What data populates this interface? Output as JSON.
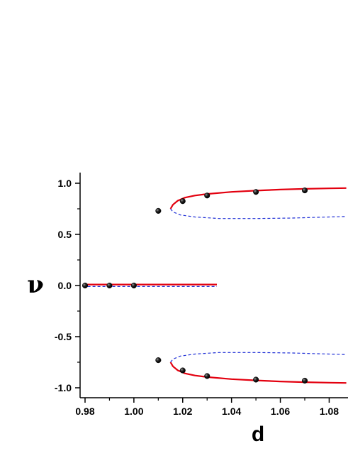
{
  "chart_data": {
    "type": "scatter",
    "title": "",
    "xlabel": "d",
    "ylabel": "ν",
    "xlim": [
      0.979,
      1.087
    ],
    "ylim": [
      -1.1,
      1.1
    ],
    "grid": false,
    "legend": "none",
    "x_ticks": [
      "0.98",
      "1.00",
      "1.02",
      "1.04",
      "1.06",
      "1.08"
    ],
    "y_ticks": [
      "1.0",
      "0.5",
      "0.0",
      "-0.5",
      "-1.0"
    ],
    "series": [
      {
        "style": "solid",
        "color": "#e3000f",
        "points": [
          [
            0.979,
            0.01
          ],
          [
            1.034,
            0.01
          ]
        ]
      },
      {
        "style": "dashed",
        "color": "#1f2fd6",
        "points": [
          [
            0.979,
            -0.01
          ],
          [
            1.034,
            -0.01
          ]
        ]
      },
      {
        "style": "solid",
        "color": "#e3000f",
        "points": [
          [
            1.015,
            0.75
          ],
          [
            1.016,
            0.79
          ],
          [
            1.018,
            0.83
          ],
          [
            1.021,
            0.86
          ],
          [
            1.025,
            0.88
          ],
          [
            1.03,
            0.895
          ],
          [
            1.04,
            0.915
          ],
          [
            1.05,
            0.928
          ],
          [
            1.06,
            0.938
          ],
          [
            1.07,
            0.945
          ],
          [
            1.08,
            0.95
          ],
          [
            1.087,
            0.953
          ]
        ]
      },
      {
        "style": "dashed",
        "color": "#1f2fd6",
        "points": [
          [
            1.015,
            0.75
          ],
          [
            1.016,
            0.72
          ],
          [
            1.019,
            0.69
          ],
          [
            1.025,
            0.67
          ],
          [
            1.035,
            0.655
          ],
          [
            1.05,
            0.655
          ],
          [
            1.065,
            0.66
          ],
          [
            1.08,
            0.67
          ],
          [
            1.087,
            0.675
          ]
        ]
      },
      {
        "style": "solid",
        "color": "#e3000f",
        "points": [
          [
            1.015,
            -0.75
          ],
          [
            1.016,
            -0.79
          ],
          [
            1.018,
            -0.83
          ],
          [
            1.021,
            -0.86
          ],
          [
            1.025,
            -0.88
          ],
          [
            1.03,
            -0.895
          ],
          [
            1.04,
            -0.915
          ],
          [
            1.05,
            -0.928
          ],
          [
            1.06,
            -0.938
          ],
          [
            1.07,
            -0.945
          ],
          [
            1.08,
            -0.95
          ],
          [
            1.087,
            -0.953
          ]
        ]
      },
      {
        "style": "dashed",
        "color": "#1f2fd6",
        "points": [
          [
            1.015,
            -0.75
          ],
          [
            1.016,
            -0.72
          ],
          [
            1.019,
            -0.69
          ],
          [
            1.025,
            -0.67
          ],
          [
            1.035,
            -0.655
          ],
          [
            1.05,
            -0.655
          ],
          [
            1.065,
            -0.66
          ],
          [
            1.08,
            -0.67
          ],
          [
            1.087,
            -0.675
          ]
        ]
      },
      {
        "style": "markers",
        "color": "#000000",
        "points": [
          [
            0.98,
            0.0
          ],
          [
            0.99,
            0.0
          ],
          [
            1.0,
            0.0
          ],
          [
            1.01,
            0.73
          ],
          [
            1.02,
            0.825
          ],
          [
            1.03,
            0.88
          ],
          [
            1.05,
            0.915
          ],
          [
            1.07,
            0.93
          ],
          [
            1.01,
            -0.73
          ],
          [
            1.02,
            -0.83
          ],
          [
            1.03,
            -0.885
          ],
          [
            1.05,
            -0.92
          ],
          [
            1.07,
            -0.93
          ]
        ]
      }
    ]
  }
}
